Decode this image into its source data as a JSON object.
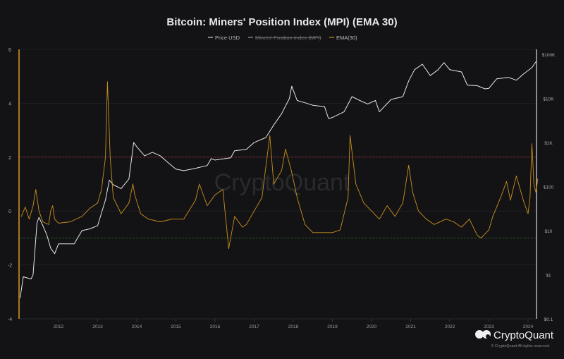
{
  "chart_data": {
    "type": "line",
    "title": "Bitcoin: Miners' Position Index (MPI) (EMA 30)",
    "legend": {
      "placement": "top-center",
      "items": [
        {
          "label": "Price USD",
          "color": "#cccccc",
          "hidden": false
        },
        {
          "label": "Miners' Position Index (MPI)",
          "color": "#9a9a9a",
          "hidden": true
        },
        {
          "label": "EMA(30)",
          "color": "#c8901c",
          "hidden": false
        }
      ]
    },
    "left_axis": {
      "ticks": [
        "6",
        "4",
        "2",
        "0",
        "-2",
        "-4"
      ],
      "ylim": [
        -4,
        6
      ]
    },
    "right_axis": {
      "scale": "log",
      "ticks": [
        "$100K",
        "$10K",
        "$1K",
        "$100",
        "$10",
        "$1",
        "$0.1"
      ],
      "ylim": [
        0.1,
        130000
      ]
    },
    "x_axis": {
      "ticks": [
        "2012",
        "2013",
        "2014",
        "2015",
        "2016",
        "2017",
        "2018",
        "2019",
        "2020",
        "2021",
        "2022",
        "2023",
        "2024"
      ],
      "xlim": [
        2011.0,
        2024.2
      ]
    },
    "reference_lines": [
      {
        "value": 2,
        "color": "#8a2a2a",
        "style": "dashed"
      },
      {
        "value": -1,
        "color": "#2f6a2f",
        "style": "dashed"
      }
    ],
    "grid": true,
    "series": [
      {
        "name": "Price USD",
        "axis": "right",
        "color": "#e6e6e6",
        "x": [
          2011.02,
          2011.1,
          2011.3,
          2011.35,
          2011.45,
          2011.5,
          2011.6,
          2011.7,
          2011.8,
          2011.9,
          2012.0,
          2012.2,
          2012.4,
          2012.6,
          2012.8,
          2013.0,
          2013.2,
          2013.3,
          2013.4,
          2013.6,
          2013.8,
          2013.92,
          2014.0,
          2014.2,
          2014.4,
          2014.6,
          2014.8,
          2015.0,
          2015.2,
          2015.5,
          2015.8,
          2015.9,
          2016.0,
          2016.4,
          2016.5,
          2016.8,
          2017.0,
          2017.3,
          2017.5,
          2017.7,
          2017.9,
          2017.96,
          2018.1,
          2018.3,
          2018.5,
          2018.8,
          2018.9,
          2019.0,
          2019.3,
          2019.5,
          2019.7,
          2019.9,
          2020.1,
          2020.2,
          2020.5,
          2020.8,
          2020.95,
          2021.1,
          2021.3,
          2021.5,
          2021.7,
          2021.85,
          2022.0,
          2022.3,
          2022.45,
          2022.7,
          2022.9,
          2023.0,
          2023.2,
          2023.5,
          2023.7,
          2023.9,
          2024.0,
          2024.1,
          2024.2
        ],
        "values": [
          0.3,
          0.9,
          0.8,
          1,
          15,
          20,
          13,
          8,
          4,
          3,
          5,
          5,
          5,
          10,
          11,
          13,
          50,
          140,
          110,
          90,
          150,
          1000,
          800,
          500,
          600,
          500,
          350,
          250,
          230,
          260,
          300,
          430,
          400,
          450,
          650,
          700,
          1000,
          1300,
          2500,
          4500,
          10000,
          19000,
          9000,
          8000,
          7000,
          6500,
          3500,
          3700,
          5000,
          11000,
          9000,
          7500,
          9000,
          5000,
          9500,
          11000,
          25000,
          45000,
          60000,
          33000,
          45000,
          65000,
          45000,
          40000,
          20000,
          19500,
          16500,
          17000,
          28000,
          30000,
          26000,
          37000,
          43000,
          50000,
          68000
        ]
      },
      {
        "name": "EMA(30)",
        "axis": "left",
        "color": "#c8901c",
        "x": [
          2011.05,
          2011.15,
          2011.25,
          2011.35,
          2011.42,
          2011.5,
          2011.6,
          2011.75,
          2011.8,
          2011.85,
          2011.9,
          2012.0,
          2012.3,
          2012.6,
          2012.8,
          2013.0,
          2013.1,
          2013.2,
          2013.25,
          2013.32,
          2013.4,
          2013.6,
          2013.8,
          2013.9,
          2013.95,
          2014.1,
          2014.3,
          2014.6,
          2014.9,
          2015.2,
          2015.5,
          2015.6,
          2015.8,
          2016.0,
          2016.2,
          2016.35,
          2016.5,
          2016.7,
          2016.8,
          2017.0,
          2017.2,
          2017.4,
          2017.5,
          2017.7,
          2017.8,
          2017.95,
          2018.1,
          2018.3,
          2018.5,
          2018.8,
          2019.0,
          2019.2,
          2019.4,
          2019.45,
          2019.6,
          2019.8,
          2020.0,
          2020.2,
          2020.4,
          2020.6,
          2020.8,
          2020.95,
          2021.05,
          2021.2,
          2021.4,
          2021.6,
          2021.9,
          2022.1,
          2022.3,
          2022.5,
          2022.7,
          2022.8,
          2023.0,
          2023.1,
          2023.3,
          2023.45,
          2023.55,
          2023.7,
          2023.8,
          2023.9,
          2024.0,
          2024.05,
          2024.1,
          2024.15,
          2024.2,
          2024.25
        ],
        "values": [
          -0.2,
          0.15,
          -0.3,
          0.2,
          0.8,
          0.0,
          -0.4,
          -0.5,
          0.0,
          0.2,
          -0.3,
          -0.45,
          -0.4,
          -0.2,
          0.1,
          0.3,
          0.8,
          2.0,
          4.8,
          2.0,
          0.5,
          -0.1,
          0.3,
          1.0,
          0.6,
          -0.1,
          -0.3,
          -0.4,
          -0.3,
          -0.3,
          0.4,
          1.0,
          0.2,
          0.6,
          0.8,
          -1.4,
          -0.2,
          -0.6,
          -0.5,
          0.0,
          0.5,
          2.8,
          1.0,
          1.5,
          2.3,
          1.5,
          0.5,
          -0.5,
          -0.8,
          -0.8,
          -0.8,
          -0.7,
          0.5,
          2.8,
          1.0,
          0.3,
          0.0,
          -0.3,
          0.2,
          -0.2,
          0.3,
          1.7,
          0.7,
          0.0,
          -0.3,
          -0.5,
          -0.3,
          -0.4,
          -0.6,
          -0.3,
          -0.9,
          -1.0,
          -0.7,
          -0.2,
          0.5,
          1.1,
          0.4,
          1.3,
          0.8,
          0.3,
          -0.1,
          0.5,
          2.5,
          1.0,
          0.7,
          1.2
        ]
      }
    ]
  },
  "watermark": "CryptoQuant",
  "brand": {
    "name": "CryptoQuant",
    "copyright": "© CryptoQuant All rights reserved."
  }
}
